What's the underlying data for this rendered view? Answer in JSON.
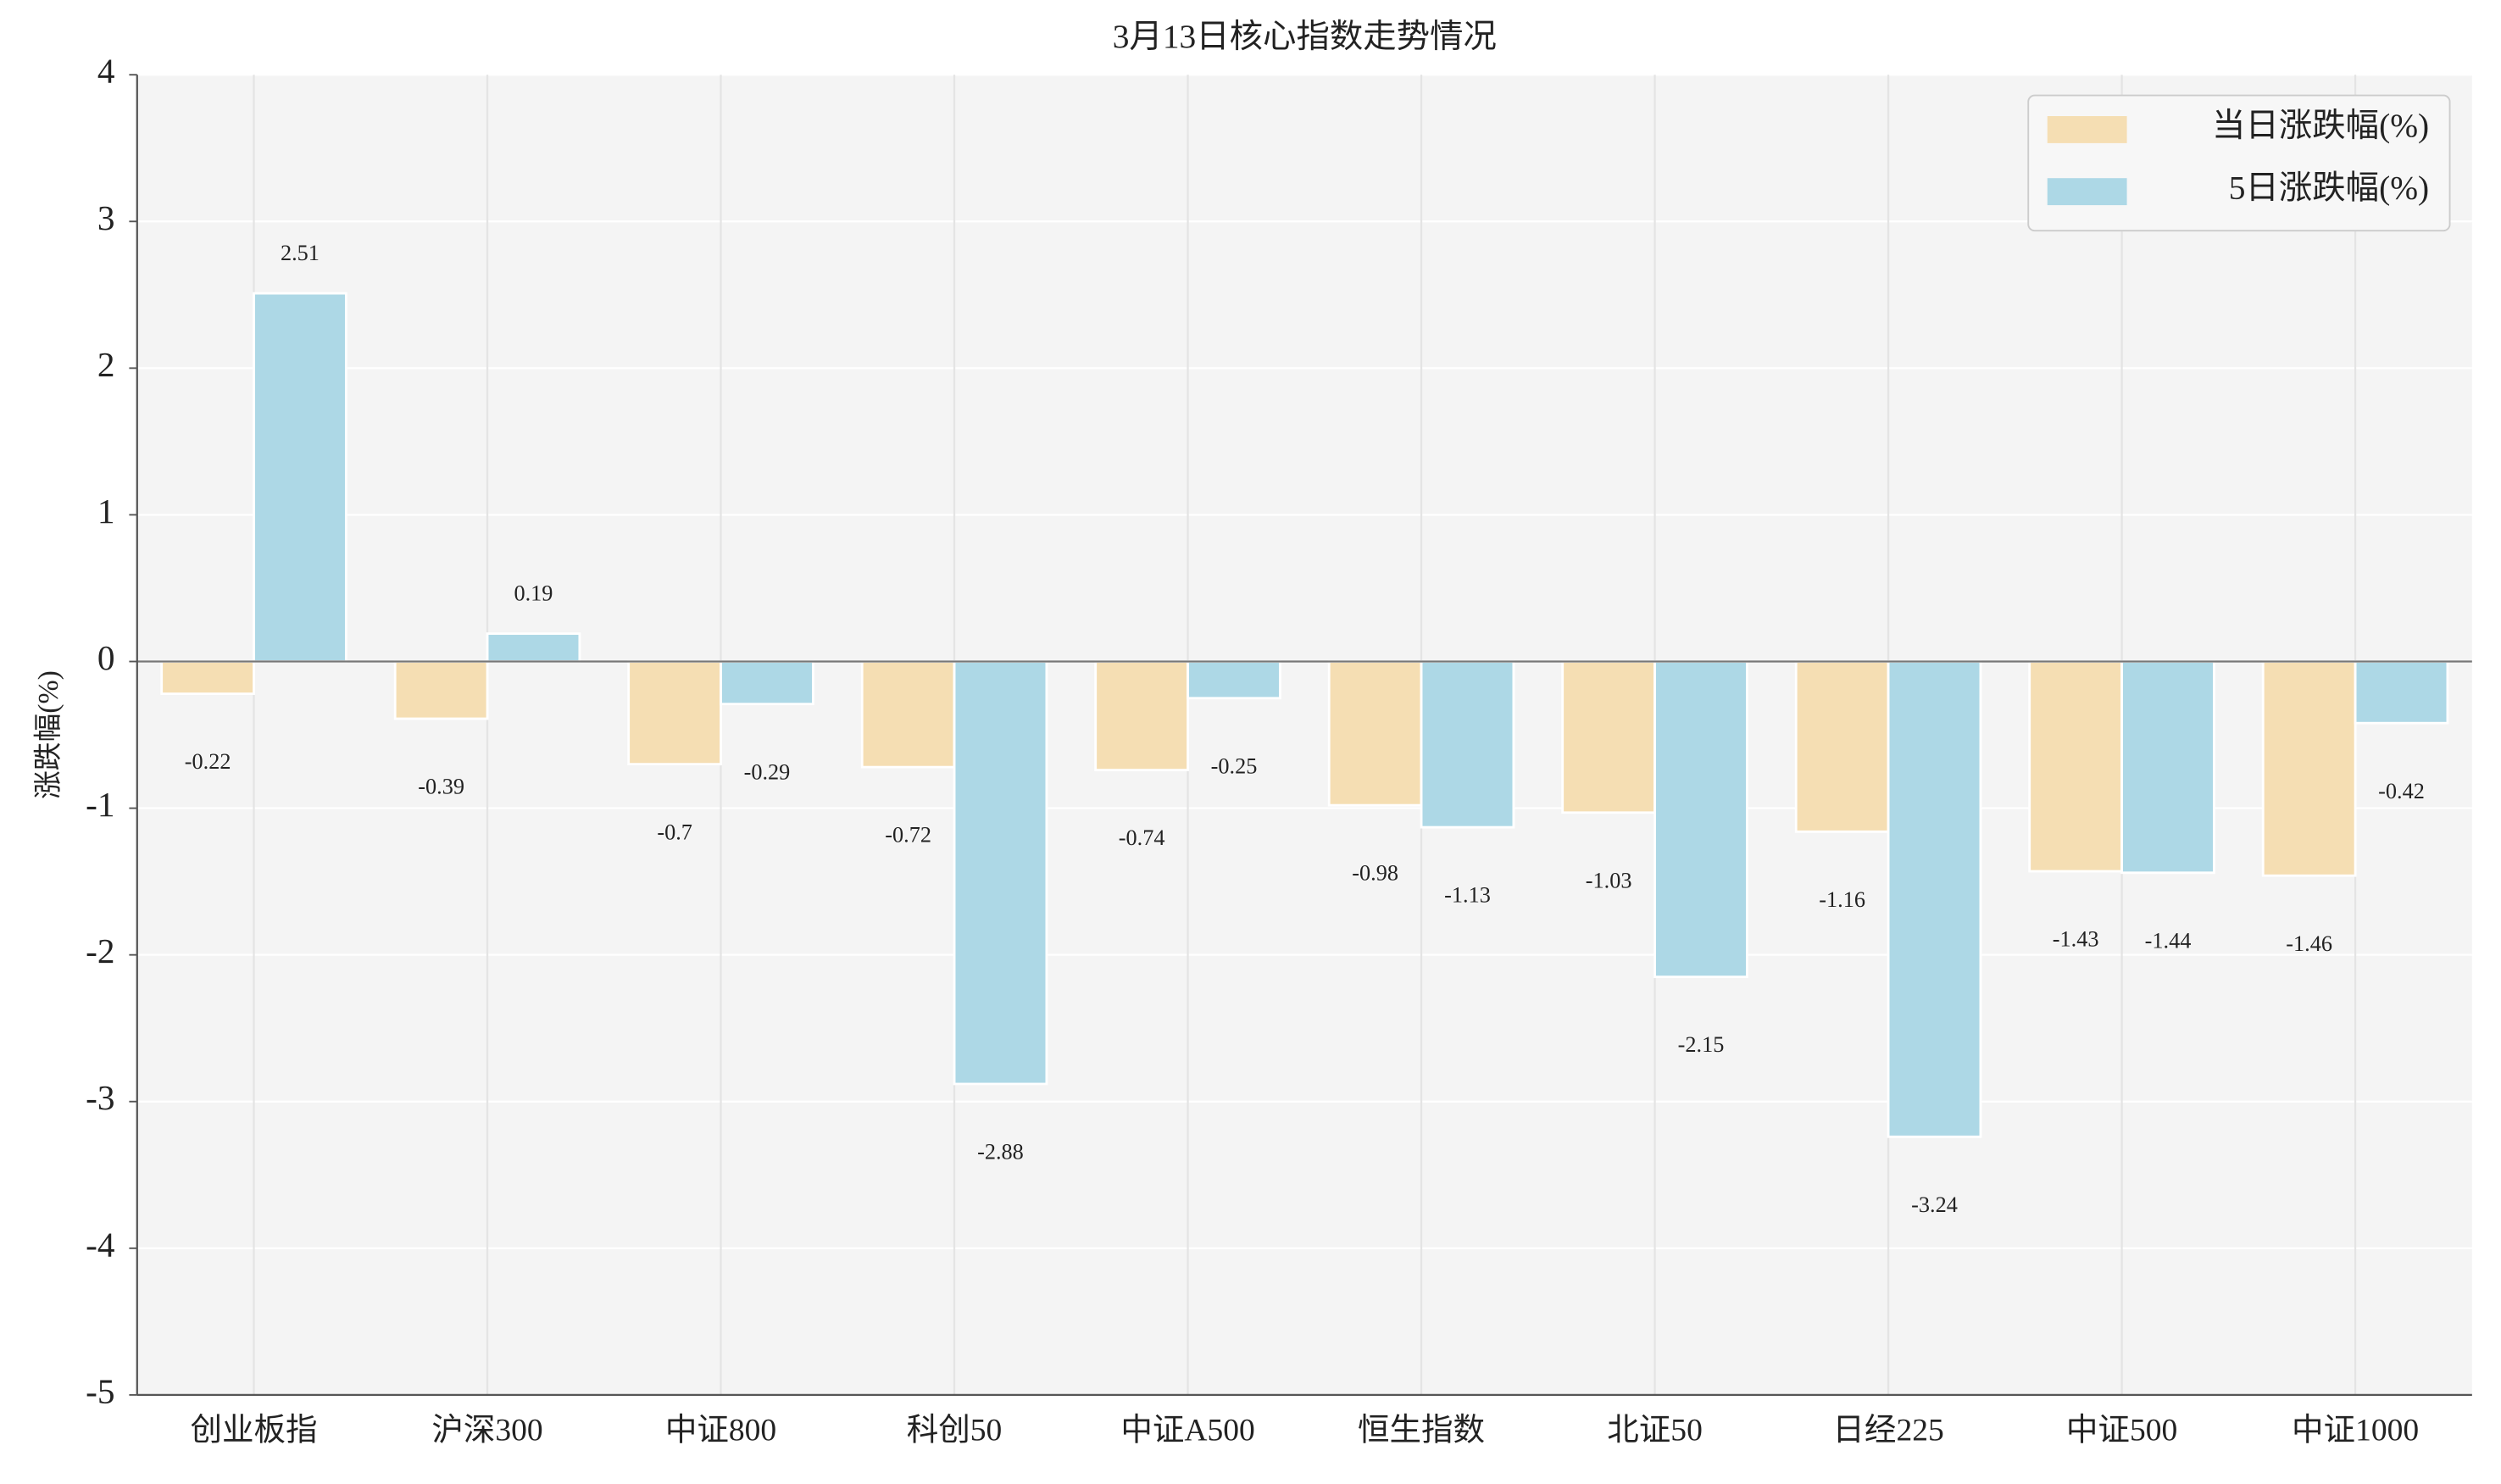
{
  "chart_data": {
    "type": "bar",
    "title": "3月13日核心指数走势情况",
    "ylabel": "涨跌幅(%)",
    "categories": [
      "创业板指",
      "沪深300",
      "中证800",
      "科创50",
      "中证A500",
      "恒生指数",
      "北证50",
      "日经225",
      "中证500",
      "中证1000"
    ],
    "series": [
      {
        "name": "当日涨跌幅(%)",
        "color": "#f5deb3",
        "values": [
          -0.22,
          -0.39,
          -0.7,
          -0.72,
          -0.74,
          -0.98,
          -1.03,
          -1.16,
          -1.43,
          -1.46
        ]
      },
      {
        "name": "5日涨跌幅(%)",
        "color": "#add8e6",
        "values": [
          2.51,
          0.19,
          -0.29,
          -2.88,
          -0.25,
          -1.13,
          -2.15,
          -3.24,
          -1.44,
          -0.42
        ]
      }
    ],
    "ylim": [
      -5,
      4
    ],
    "yticks": [
      -5,
      -4,
      -3,
      -2,
      -1,
      0,
      1,
      2,
      3,
      4
    ],
    "grid": true,
    "legend": "upper right"
  }
}
